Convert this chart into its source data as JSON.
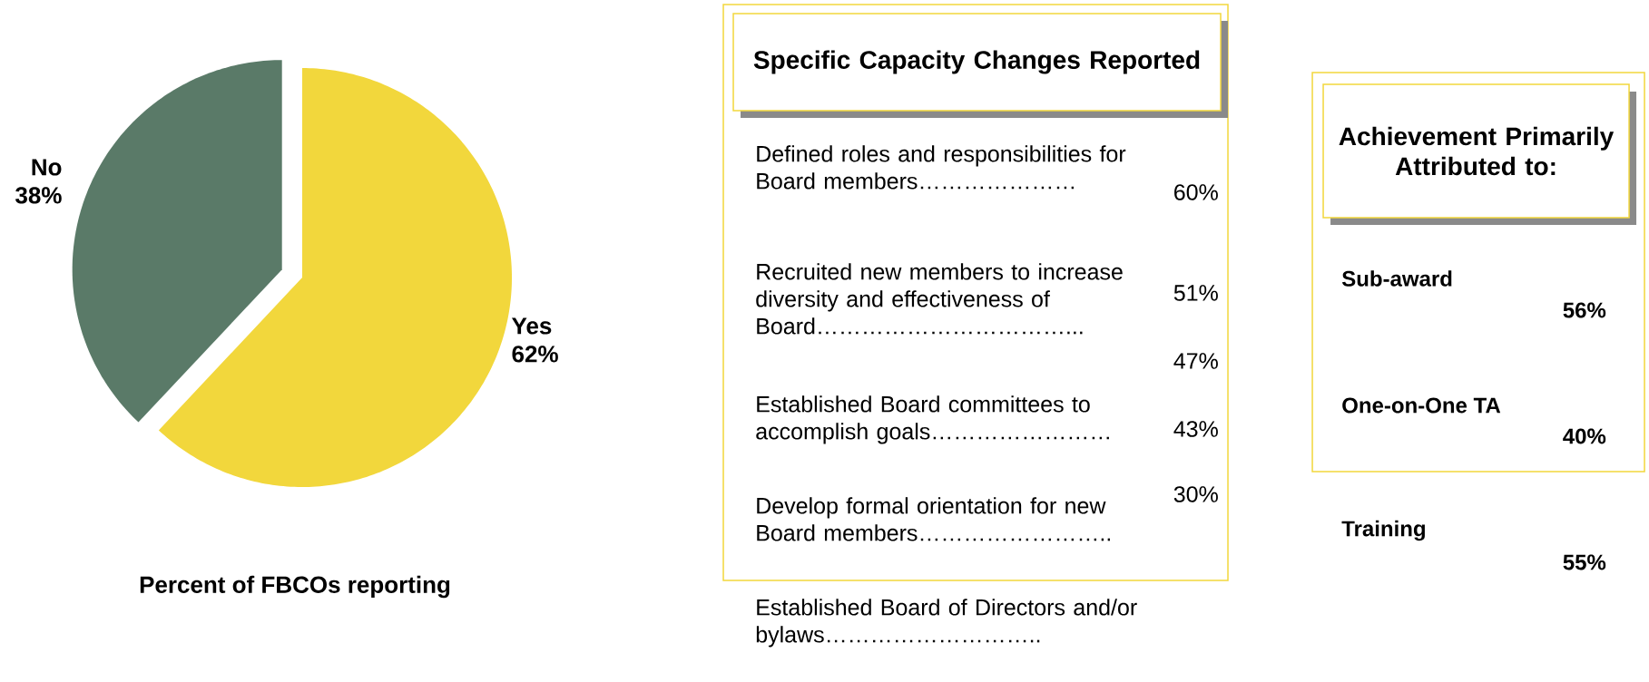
{
  "chart_data": [
    {
      "type": "pie",
      "title": "Percent of FBCOs reporting",
      "categories": [
        "Yes",
        "No"
      ],
      "values": [
        62,
        38
      ],
      "value_labels": [
        "62%",
        "38%"
      ],
      "colors": [
        "#f2d73c",
        "#5a7a68"
      ]
    },
    {
      "type": "other",
      "title": "Specific Capacity Changes Reported",
      "annotations": [
        "Defined roles and responsibilities for Board members…………………",
        "60%",
        "Recruited new members to increase diversity and effectiveness of Board……………………………...",
        "51%",
        "47%",
        "Established Board committees to accomplish goals……………………",
        "43%",
        "Develop formal orientation for new Board members……………………..",
        "30%",
        "Established Board of Directors and/or bylaws……………………….."
      ]
    },
    {
      "type": "other",
      "title": "Achievement Primarily Attributed to:",
      "annotations": [
        "Sub-award",
        "56%",
        "One-on-One TA",
        "40%",
        "Training",
        "55%"
      ]
    }
  ]
}
